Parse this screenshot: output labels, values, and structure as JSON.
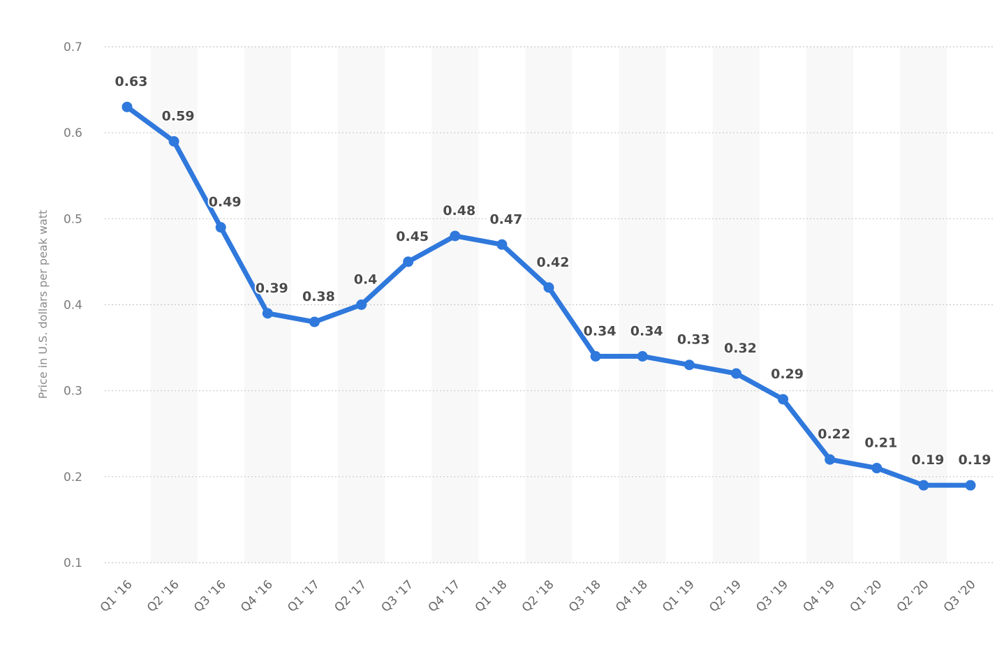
{
  "chart_data": {
    "type": "line",
    "title": "",
    "xlabel": "",
    "ylabel": "Price in U.S. dollars per peak watt",
    "ylim": [
      0.1,
      0.7
    ],
    "yticks": [
      0.1,
      0.2,
      0.3,
      0.4,
      0.5,
      0.6,
      0.7
    ],
    "ytick_labels": [
      "0.1",
      "0.2",
      "0.3",
      "0.4",
      "0.5",
      "0.6",
      "0.7"
    ],
    "grid": true,
    "legend": null,
    "categories": [
      "Q1 '16",
      "Q2 '16",
      "Q3 '16",
      "Q4 '16",
      "Q1 '17",
      "Q2 '17",
      "Q3 '17",
      "Q4 '17",
      "Q1 '18",
      "Q2 '18",
      "Q3 '18",
      "Q4 '18",
      "Q1 '19",
      "Q2 '19",
      "Q3 '19",
      "Q4 '19",
      "Q1 '20",
      "Q2 '20",
      "Q3 '20"
    ],
    "series": [
      {
        "name": "Price",
        "color": "#2f78dc",
        "values": [
          0.63,
          0.59,
          0.49,
          0.39,
          0.38,
          0.4,
          0.45,
          0.48,
          0.47,
          0.42,
          0.34,
          0.34,
          0.33,
          0.32,
          0.29,
          0.22,
          0.21,
          0.19,
          0.19
        ],
        "labels": [
          "0.63",
          "0.59",
          "0.49",
          "0.39",
          "0.38",
          "0.4",
          "0.45",
          "0.48",
          "0.47",
          "0.42",
          "0.34",
          "0.34",
          "0.33",
          "0.32",
          "0.29",
          "0.22",
          "0.21",
          "0.19",
          "0.19"
        ]
      }
    ]
  },
  "colors": {
    "line": "#2f78dc",
    "grid": "#c8c8c8",
    "band": "#f8f8f8",
    "tick_text": "#7a7a7a",
    "data_label": "#4a4a4a"
  }
}
